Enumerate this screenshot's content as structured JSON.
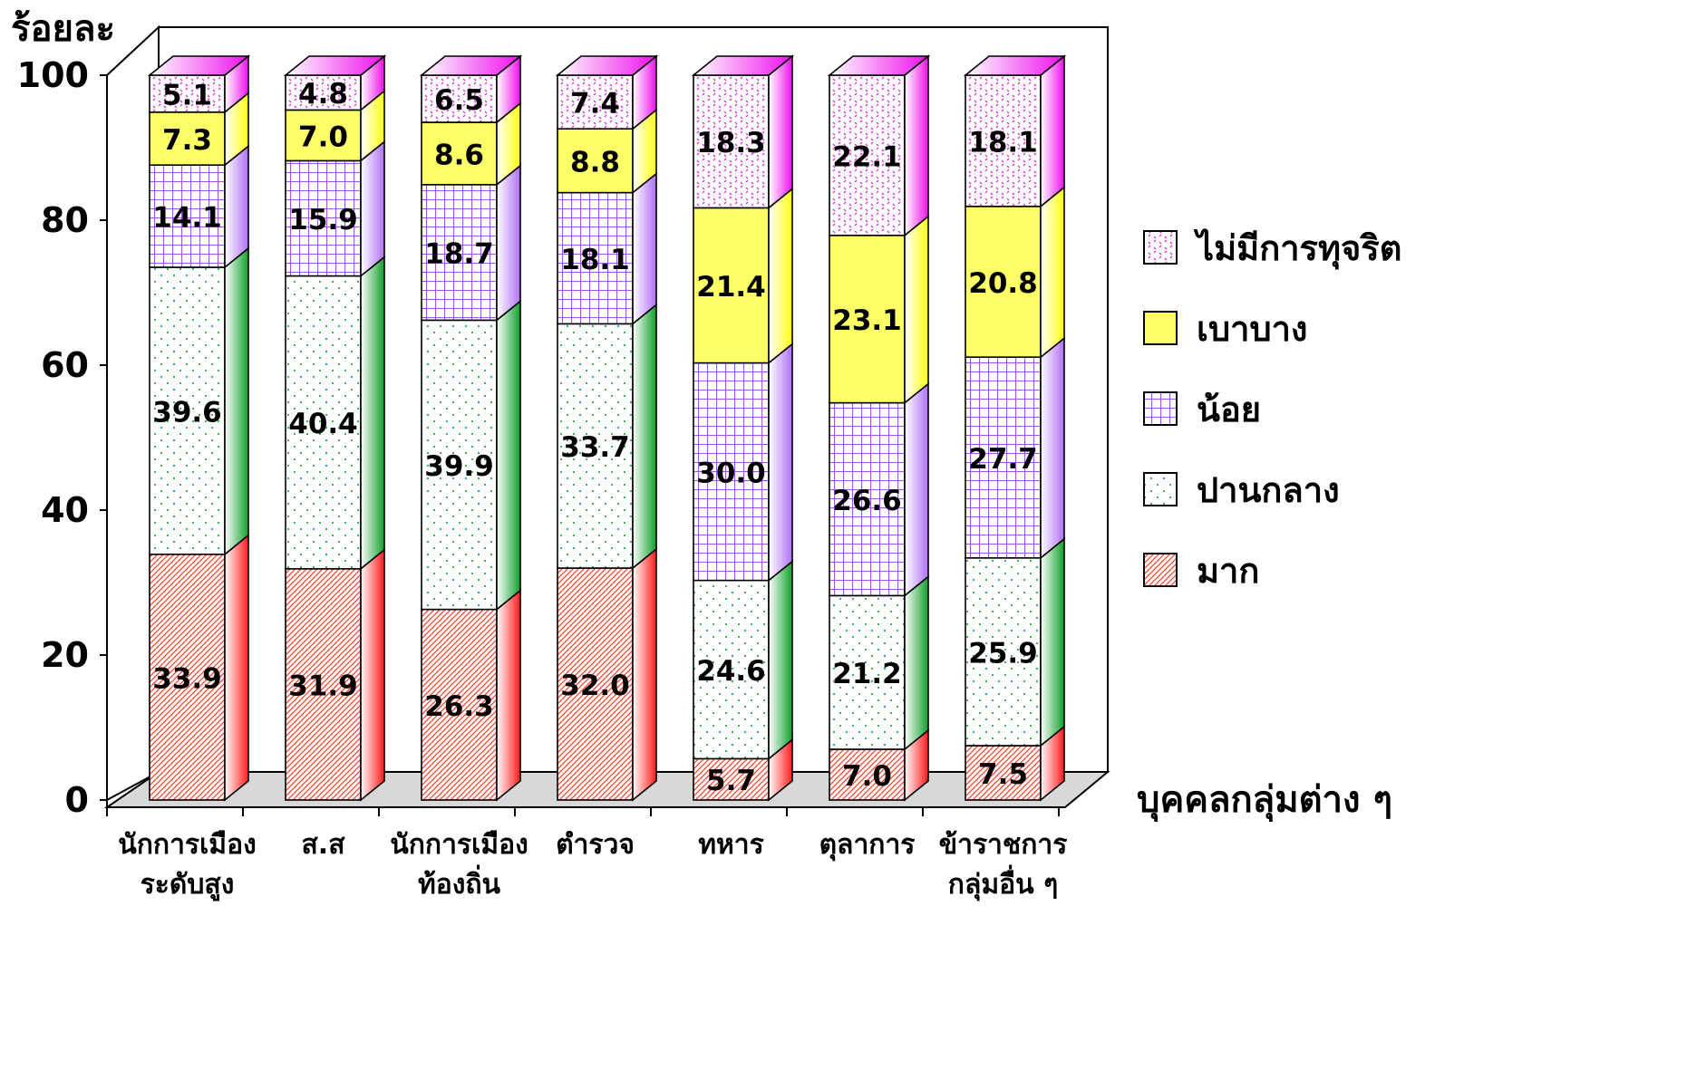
{
  "colors": {
    "มาก": "#ff6a55",
    "ปานกลาง": "#1e9c3a",
    "น้อย": "#c79af3",
    "เบาบาง": "#ffff55",
    "ไม่มีการทุจริต": "#ee44ee",
    "floor": "#d8d8d8"
  },
  "chart_data": {
    "type": "bar",
    "stacked": true,
    "three_d": true,
    "ylabel": "ร้อยละ",
    "xlabel": "บุคคลกลุ่มต่าง ๆ",
    "ylim": [
      0,
      100
    ],
    "yticks": [
      0,
      20,
      40,
      60,
      80,
      100
    ],
    "legend_position": "right",
    "categories": [
      "นักการเมือง\nระดับสูง",
      "ส.ส",
      "นักการเมือง\nท้องถิ่น",
      "ตำรวจ",
      "ทหาร",
      "ตุลาการ",
      "ข้าราชการ\nกลุ่มอื่น ๆ"
    ],
    "series": [
      {
        "name": "มาก",
        "values": [
          33.9,
          31.9,
          26.3,
          32.0,
          5.7,
          7.0,
          7.5
        ]
      },
      {
        "name": "ปานกลาง",
        "values": [
          39.6,
          40.4,
          39.9,
          33.7,
          24.6,
          21.2,
          25.9
        ]
      },
      {
        "name": "น้อย",
        "values": [
          14.1,
          15.9,
          18.7,
          18.1,
          30.0,
          26.6,
          27.7
        ]
      },
      {
        "name": "เบาบาง",
        "values": [
          7.3,
          7.0,
          8.6,
          8.8,
          21.4,
          23.1,
          20.8
        ]
      },
      {
        "name": "ไม่มีการทุจริต",
        "values": [
          5.1,
          4.8,
          6.5,
          7.4,
          18.3,
          22.1,
          18.1
        ]
      }
    ],
    "legend_order": [
      "ไม่มีการทุจริต",
      "เบาบาง",
      "น้อย",
      "ปานกลาง",
      "มาก"
    ]
  }
}
